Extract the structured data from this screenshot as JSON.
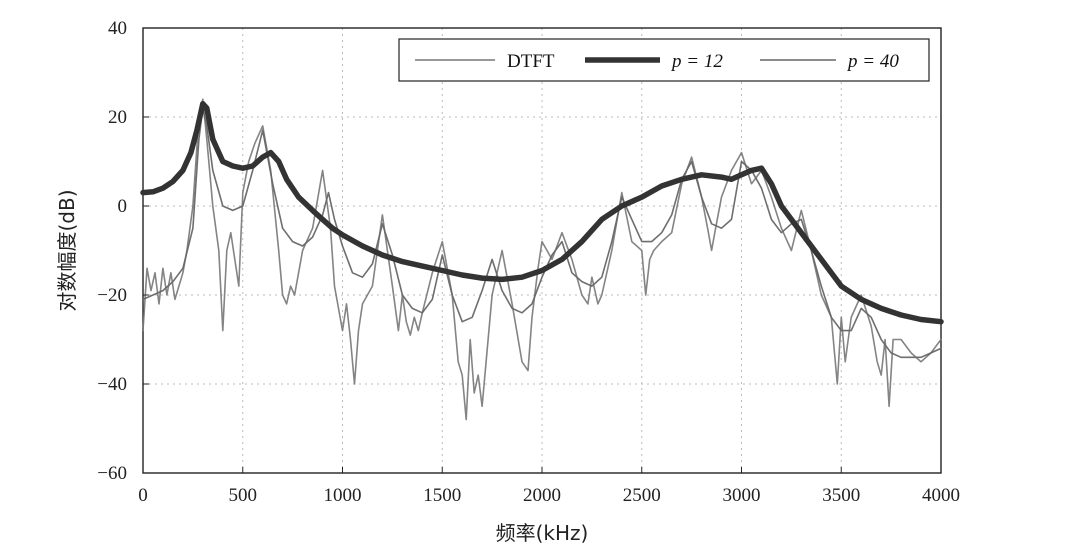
{
  "chart_data": {
    "type": "line",
    "title": "",
    "xlabel": "频率(kHz)",
    "ylabel": "对数幅度(dB)",
    "xlim": [
      0,
      4000
    ],
    "ylim": [
      -60,
      40
    ],
    "xticks": [
      0,
      500,
      1000,
      1500,
      2000,
      2500,
      3000,
      3500,
      4000
    ],
    "yticks": [
      -60,
      -40,
      -20,
      0,
      20,
      40
    ],
    "xtick_labels": [
      "0",
      "500",
      "1000",
      "1500",
      "2000",
      "2500",
      "3000",
      "3500",
      "4000"
    ],
    "ytick_labels": [
      "−60",
      "−40",
      "−20",
      "0",
      "20",
      "40"
    ],
    "grid": true,
    "legend_position": "top-right",
    "series": [
      {
        "name": "DTFT",
        "color": "#777777",
        "x": [
          0,
          20,
          40,
          60,
          80,
          100,
          120,
          140,
          160,
          180,
          200,
          220,
          250,
          280,
          300,
          320,
          350,
          380,
          400,
          420,
          440,
          460,
          480,
          500,
          530,
          560,
          600,
          640,
          680,
          700,
          720,
          740,
          760,
          800,
          850,
          900,
          940,
          960,
          1000,
          1020,
          1040,
          1060,
          1080,
          1100,
          1150,
          1200,
          1250,
          1280,
          1300,
          1320,
          1340,
          1360,
          1380,
          1400,
          1450,
          1500,
          1550,
          1580,
          1600,
          1620,
          1640,
          1660,
          1680,
          1700,
          1750,
          1800,
          1850,
          1900,
          1930,
          1950,
          1980,
          2000,
          2050,
          2100,
          2150,
          2200,
          2230,
          2250,
          2280,
          2300,
          2350,
          2400,
          2450,
          2500,
          2520,
          2540,
          2560,
          2600,
          2650,
          2700,
          2750,
          2800,
          2830,
          2850,
          2870,
          2900,
          2950,
          3000,
          3050,
          3100,
          3150,
          3200,
          3250,
          3300,
          3350,
          3400,
          3450,
          3480,
          3500,
          3520,
          3550,
          3600,
          3650,
          3680,
          3700,
          3720,
          3740,
          3760,
          3800,
          3850,
          3900,
          3950,
          4000
        ],
        "y": [
          -28,
          -14,
          -19,
          -15,
          -22,
          -14,
          -20,
          -15,
          -21,
          -18,
          -15,
          -10,
          0,
          20,
          24,
          15,
          0,
          -10,
          -28,
          -10,
          -6,
          -12,
          -18,
          3,
          10,
          14,
          18,
          8,
          -10,
          -20,
          -22,
          -18,
          -20,
          -10,
          -5,
          8,
          -5,
          -18,
          -28,
          -22,
          -30,
          -40,
          -28,
          -22,
          -18,
          -2,
          -18,
          -28,
          -20,
          -26,
          -29,
          -25,
          -28,
          -24,
          -15,
          -8,
          -20,
          -35,
          -38,
          -48,
          -30,
          -42,
          -38,
          -45,
          -20,
          -10,
          -22,
          -35,
          -37,
          -25,
          -14,
          -8,
          -12,
          -6,
          -12,
          -20,
          -22,
          -16,
          -22,
          -20,
          -10,
          3,
          -8,
          -10,
          -20,
          -12,
          -10,
          -8,
          -6,
          5,
          11,
          2,
          -5,
          -10,
          -5,
          2,
          8,
          12,
          5,
          8,
          2,
          -5,
          -10,
          -1,
          -10,
          -20,
          -25,
          -40,
          -25,
          -35,
          -25,
          -20,
          -27,
          -35,
          -38,
          -30,
          -45,
          -30,
          -30,
          -33,
          -35,
          -33,
          -30
        ]
      },
      {
        "name": "p = 12",
        "color": "#333333",
        "x": [
          0,
          50,
          100,
          150,
          200,
          240,
          270,
          300,
          320,
          350,
          400,
          450,
          500,
          550,
          600,
          640,
          680,
          720,
          780,
          850,
          900,
          950,
          1000,
          1100,
          1200,
          1300,
          1400,
          1500,
          1600,
          1700,
          1800,
          1900,
          2000,
          2100,
          2200,
          2300,
          2400,
          2500,
          2600,
          2700,
          2800,
          2900,
          2950,
          3000,
          3050,
          3100,
          3150,
          3200,
          3300,
          3400,
          3500,
          3600,
          3700,
          3800,
          3900,
          4000
        ],
        "y": [
          3,
          3.2,
          4,
          5.5,
          8,
          12,
          17,
          23,
          22,
          15,
          10,
          9,
          8.5,
          9,
          11,
          12,
          10,
          6,
          2,
          -1,
          -3,
          -5,
          -6.5,
          -9,
          -11,
          -12.5,
          -13.5,
          -14.5,
          -15.5,
          -16.2,
          -16.5,
          -16,
          -14.5,
          -12,
          -8,
          -3,
          0,
          2,
          4.5,
          6,
          7,
          6.5,
          6,
          7,
          8,
          8.5,
          5,
          0,
          -6,
          -12,
          -18,
          -21,
          -23,
          -24.5,
          -25.5,
          -26
        ]
      },
      {
        "name": "p = 40",
        "color": "#666666",
        "x": [
          0,
          50,
          100,
          150,
          200,
          250,
          280,
          300,
          320,
          350,
          400,
          450,
          500,
          550,
          600,
          650,
          700,
          750,
          800,
          850,
          900,
          930,
          960,
          1000,
          1050,
          1100,
          1150,
          1200,
          1250,
          1300,
          1350,
          1400,
          1450,
          1500,
          1550,
          1600,
          1650,
          1700,
          1750,
          1800,
          1850,
          1900,
          1950,
          2000,
          2050,
          2100,
          2150,
          2200,
          2250,
          2300,
          2350,
          2400,
          2450,
          2500,
          2550,
          2600,
          2650,
          2700,
          2750,
          2800,
          2850,
          2900,
          2950,
          3000,
          3050,
          3100,
          3150,
          3200,
          3250,
          3300,
          3350,
          3400,
          3450,
          3500,
          3550,
          3600,
          3650,
          3700,
          3750,
          3800,
          3850,
          3900,
          3950,
          4000
        ],
        "y": [
          -21,
          -20,
          -19,
          -17,
          -14,
          -5,
          15,
          22,
          18,
          8,
          0,
          -1,
          0,
          8,
          17,
          5,
          -5,
          -8,
          -9,
          -7,
          -2,
          3,
          -3,
          -9,
          -15,
          -16,
          -13,
          -4,
          -11,
          -20,
          -23,
          -24,
          -21,
          -11,
          -20,
          -26,
          -25,
          -19,
          -12,
          -19,
          -23,
          -24,
          -22,
          -16,
          -11,
          -8,
          -15,
          -17,
          -18,
          -16,
          -8,
          2,
          -3,
          -8,
          -8,
          -6,
          -2,
          6,
          10,
          2,
          -4,
          -5,
          -3,
          10,
          8,
          4,
          -3,
          -6,
          -4,
          -3,
          -10,
          -18,
          -25,
          -28,
          -28,
          -23,
          -25,
          -30,
          -33,
          -34,
          -34,
          -34,
          -33,
          -32
        ]
      }
    ]
  }
}
